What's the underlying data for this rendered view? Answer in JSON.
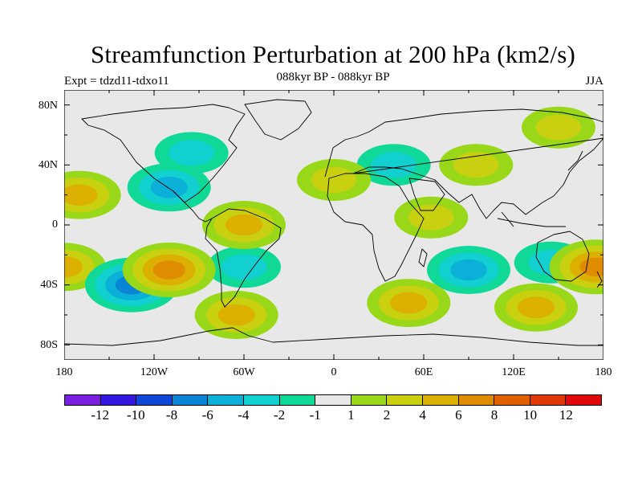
{
  "title": "Streamfunction Perturbation at 200 hPa (km2/s)",
  "subtitle": "088kyr BP - 088kyr BP",
  "experiment": "Expt = tdzd11-tdxo11",
  "season": "JJA",
  "map": {
    "lat_ticks": [
      "80N",
      "40N",
      "0",
      "40S",
      "80S"
    ],
    "lon_ticks": [
      "180",
      "120W",
      "60W",
      "0",
      "60E",
      "120E",
      "180"
    ]
  },
  "colorbar": {
    "colors": [
      "#7a1ee0",
      "#3418e0",
      "#0f48d8",
      "#0a84d4",
      "#0ab0d8",
      "#12d0d0",
      "#10d896",
      "#e8e8e8",
      "#98d818",
      "#c8d010",
      "#dcb000",
      "#e08c00",
      "#e06000",
      "#e03808",
      "#e00808"
    ],
    "labels": [
      "-12",
      "-10",
      "-8",
      "-6",
      "-4",
      "-2",
      "-1",
      "1",
      "2",
      "4",
      "6",
      "8",
      "10",
      "12"
    ]
  },
  "chart_data": {
    "type": "heatmap",
    "variable": "Streamfunction Perturbation at 200 hPa",
    "units": "km2/s",
    "levels": [
      -12,
      -10,
      -8,
      -6,
      -4,
      -2,
      -1,
      1,
      2,
      4,
      6,
      8,
      10,
      12
    ],
    "lon_range": [
      -180,
      180
    ],
    "lat_range": [
      -90,
      90
    ],
    "features": [
      {
        "lon": -135,
        "lat": -40,
        "value": -6
      },
      {
        "lon": -110,
        "lat": 25,
        "value": -4
      },
      {
        "lon": -95,
        "lat": 48,
        "value": -2
      },
      {
        "lon": 90,
        "lat": -30,
        "value": -4
      },
      {
        "lon": 40,
        "lat": 40,
        "value": -2
      },
      {
        "lon": 145,
        "lat": -25,
        "value": -2
      },
      {
        "lon": -60,
        "lat": -28,
        "value": -2
      },
      {
        "lon": -110,
        "lat": -30,
        "value": 6
      },
      {
        "lon": -170,
        "lat": 20,
        "value": 4
      },
      {
        "lon": 0,
        "lat": 30,
        "value": 2
      },
      {
        "lon": 95,
        "lat": 40,
        "value": 2
      },
      {
        "lon": -60,
        "lat": 0,
        "value": 4
      },
      {
        "lon": -65,
        "lat": -60,
        "value": 4
      },
      {
        "lon": 50,
        "lat": -52,
        "value": 4
      },
      {
        "lon": 135,
        "lat": -55,
        "value": 4
      },
      {
        "lon": 175,
        "lat": -28,
        "value": 6
      },
      {
        "lon": 65,
        "lat": 5,
        "value": 2
      },
      {
        "lon": 150,
        "lat": 65,
        "value": 2
      },
      {
        "lon": -180,
        "lat": -28,
        "value": 4
      }
    ]
  }
}
